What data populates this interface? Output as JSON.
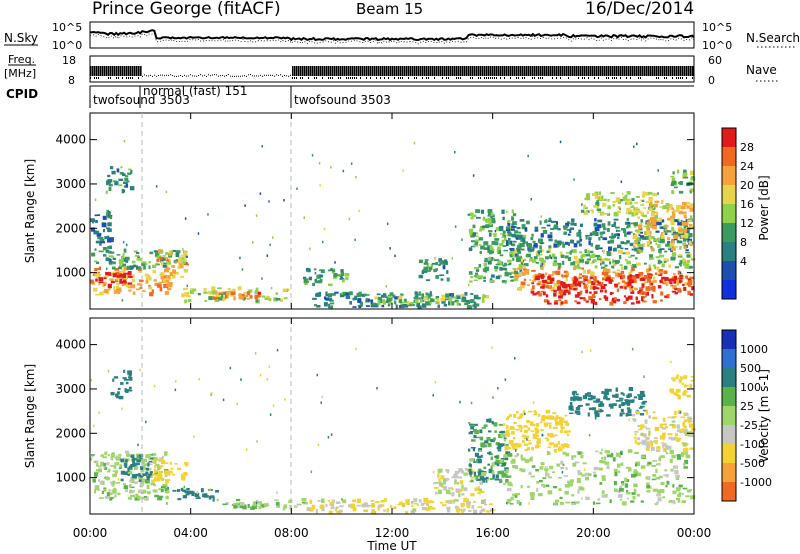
{
  "header": {
    "station": "Prince George (fitACF)",
    "beam": "Beam 15",
    "date": "16/Dec/2014"
  },
  "summary_panel": {
    "nsky_label": "N.Sky",
    "nsky_ticks": [
      "10^5",
      "10^0"
    ],
    "nsearch_label": "N.Search",
    "nsearch_ticks": [
      "10^5",
      "10^0"
    ],
    "freq_label_top": "Freq.",
    "freq_label_unit": "[MHz]",
    "freq_ticks": [
      "18",
      "8"
    ],
    "nave_label": "Nave",
    "nave_ticks": [
      "60",
      "0"
    ],
    "cpid_label": "CPID",
    "cpid_modes": [
      {
        "name": "twofsound 3503",
        "start": "00:00",
        "end": "02:00"
      },
      {
        "name": "normal (fast) 151",
        "start": "02:00",
        "end": "08:00"
      },
      {
        "name": "twofsound 3503",
        "start": "08:00",
        "end": "24:00"
      }
    ]
  },
  "colors": {
    "power_scale": [
      "#1030e0",
      "#1c4fb0",
      "#2a7f80",
      "#3b9a5e",
      "#8fd14a",
      "#e8d44c",
      "#f6a23a",
      "#ef6a1f",
      "#e21a1a"
    ],
    "velocity_scale": [
      "#1630b8",
      "#2e6fcf",
      "#2a7f80",
      "#59b34a",
      "#9ed66a",
      "#c7c7c2",
      "#f3d233",
      "#f6a23a",
      "#ef6a1f",
      "#e21a1a"
    ]
  },
  "chart_data": [
    {
      "type": "heatmap",
      "title": "",
      "quantity": "Power",
      "xlabel": "Time UT",
      "ylabel": "Slant Range [km]",
      "xticks": [
        "00:00",
        "04:00",
        "08:00",
        "12:00",
        "16:00",
        "20:00",
        "00:00"
      ],
      "yticks": [
        "1000",
        "2000",
        "3000",
        "4000"
      ],
      "xlim_hours": [
        0,
        24
      ],
      "ylim_km": [
        180,
        4600
      ],
      "colorbar": {
        "label": "Power [dB]",
        "ticks": [
          "4",
          "8",
          "12",
          "16",
          "20",
          "24",
          "28"
        ],
        "range": [
          0,
          30
        ]
      },
      "regions": [
        {
          "t0": 0.0,
          "t1": 3.2,
          "r0": 500,
          "r1": 1100,
          "value": 22
        },
        {
          "t0": 0.2,
          "t1": 1.6,
          "r0": 700,
          "r1": 1000,
          "value": 29
        },
        {
          "t0": 0.0,
          "t1": 3.8,
          "r0": 1100,
          "r1": 1500,
          "value": 12
        },
        {
          "t0": 0.0,
          "t1": 0.8,
          "r0": 1500,
          "r1": 2400,
          "value": 8
        },
        {
          "t0": 0.6,
          "t1": 1.6,
          "r0": 2800,
          "r1": 3400,
          "value": 10
        },
        {
          "t0": 2.6,
          "t1": 3.8,
          "r0": 900,
          "r1": 1500,
          "value": 20
        },
        {
          "t0": 3.6,
          "t1": 7.8,
          "r0": 350,
          "r1": 650,
          "value": 16
        },
        {
          "t0": 4.8,
          "t1": 6.8,
          "r0": 400,
          "r1": 560,
          "value": 24
        },
        {
          "t0": 8.4,
          "t1": 10.2,
          "r0": 700,
          "r1": 1100,
          "value": 12
        },
        {
          "t0": 8.8,
          "t1": 15.4,
          "r0": 220,
          "r1": 560,
          "value": 9
        },
        {
          "t0": 10.5,
          "t1": 15.8,
          "r0": 300,
          "r1": 500,
          "value": 14
        },
        {
          "t0": 13.0,
          "t1": 14.2,
          "r0": 800,
          "r1": 1300,
          "value": 10
        },
        {
          "t0": 15.0,
          "t1": 17.2,
          "r0": 800,
          "r1": 2400,
          "value": 12
        },
        {
          "t0": 16.6,
          "t1": 23.9,
          "r0": 1100,
          "r1": 1500,
          "value": 14
        },
        {
          "t0": 16.8,
          "t1": 23.9,
          "r0": 600,
          "r1": 1100,
          "value": 22
        },
        {
          "t0": 17.5,
          "t1": 23.9,
          "r0": 500,
          "r1": 950,
          "value": 29
        },
        {
          "t0": 18.0,
          "t1": 23.0,
          "r0": 300,
          "r1": 480,
          "value": 27
        },
        {
          "t0": 16.5,
          "t1": 23.9,
          "r0": 1500,
          "r1": 2200,
          "value": 9
        },
        {
          "t0": 19.5,
          "t1": 22.5,
          "r0": 2300,
          "r1": 2800,
          "value": 16
        },
        {
          "t0": 21.5,
          "t1": 23.9,
          "r0": 1500,
          "r1": 2600,
          "value": 19
        },
        {
          "t0": 23.0,
          "t1": 23.9,
          "r0": 2800,
          "r1": 3300,
          "value": 14
        }
      ]
    },
    {
      "type": "heatmap",
      "title": "",
      "quantity": "Velocity",
      "xlabel": "Time UT",
      "ylabel": "Slant Range [km]",
      "xticks": [
        "00:00",
        "04:00",
        "08:00",
        "12:00",
        "16:00",
        "20:00",
        "00:00"
      ],
      "yticks": [
        "1000",
        "2000",
        "3000",
        "4000"
      ],
      "xlim_hours": [
        0,
        24
      ],
      "ylim_km": [
        180,
        4600
      ],
      "colorbar": {
        "label": "Velocity [m s-1]",
        "ticks": [
          "1000",
          "500",
          "100",
          "25",
          "-25",
          "-100",
          "-500",
          "-1000"
        ],
        "range": [
          -1200,
          1200
        ]
      },
      "regions": [
        {
          "t0": 0.0,
          "t1": 3.0,
          "r0": 500,
          "r1": 1600,
          "value": 0
        },
        {
          "t0": 1.2,
          "t1": 2.4,
          "r0": 900,
          "r1": 1500,
          "value": 150
        },
        {
          "t0": 2.4,
          "t1": 3.8,
          "r0": 900,
          "r1": 1400,
          "value": -250
        },
        {
          "t0": 0.8,
          "t1": 1.6,
          "r0": 2800,
          "r1": 3400,
          "value": 120
        },
        {
          "t0": 3.2,
          "t1": 5.0,
          "r0": 500,
          "r1": 750,
          "value": 120
        },
        {
          "t0": 5.0,
          "t1": 8.5,
          "r0": 300,
          "r1": 520,
          "value": 0
        },
        {
          "t0": 8.5,
          "t1": 16.0,
          "r0": 200,
          "r1": 500,
          "value": -60
        },
        {
          "t0": 13.5,
          "t1": 15.5,
          "r0": 600,
          "r1": 1200,
          "value": -40
        },
        {
          "t0": 15.0,
          "t1": 16.6,
          "r0": 900,
          "r1": 2300,
          "value": 60
        },
        {
          "t0": 16.4,
          "t1": 23.9,
          "r0": 400,
          "r1": 1600,
          "value": 0
        },
        {
          "t0": 16.4,
          "t1": 19.0,
          "r0": 1600,
          "r1": 2500,
          "value": -200
        },
        {
          "t0": 19.0,
          "t1": 22.0,
          "r0": 2400,
          "r1": 3000,
          "value": 130
        },
        {
          "t0": 21.5,
          "t1": 23.9,
          "r0": 1600,
          "r1": 2500,
          "value": -60
        },
        {
          "t0": 23.0,
          "t1": 23.9,
          "r0": 2800,
          "r1": 3300,
          "value": -180
        }
      ]
    }
  ]
}
